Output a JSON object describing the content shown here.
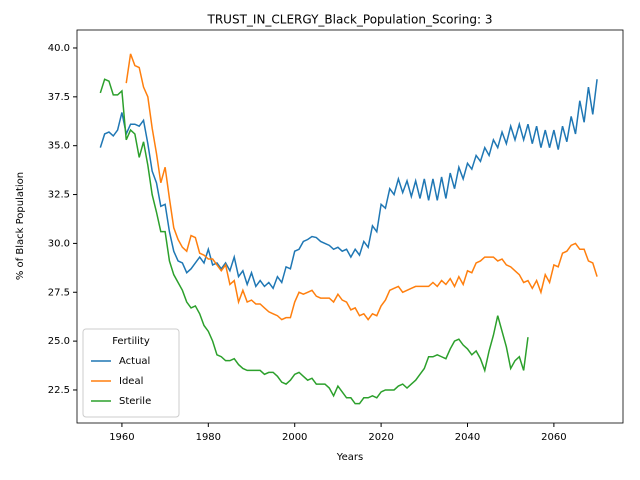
{
  "chart_data": {
    "type": "line",
    "title": "TRUST_IN_CLERGY_Black_Population_Scoring: 3",
    "xlabel": "Years",
    "ylabel": "% of Black Population",
    "legend_title": "Fertility",
    "legend_loc": "lower left",
    "grid": false,
    "x": [
      1955,
      1956,
      1957,
      1958,
      1959,
      1960,
      1961,
      1962,
      1963,
      1964,
      1965,
      1966,
      1967,
      1968,
      1969,
      1970,
      1971,
      1972,
      1973,
      1974,
      1975,
      1976,
      1977,
      1978,
      1979,
      1980,
      1981,
      1982,
      1983,
      1984,
      1985,
      1986,
      1987,
      1988,
      1989,
      1990,
      1991,
      1992,
      1993,
      1994,
      1995,
      1996,
      1997,
      1998,
      1999,
      2000,
      2001,
      2002,
      2003,
      2004,
      2005,
      2006,
      2007,
      2008,
      2009,
      2010,
      2011,
      2012,
      2013,
      2014,
      2015,
      2016,
      2017,
      2018,
      2019,
      2020,
      2021,
      2022,
      2023,
      2024,
      2025,
      2026,
      2027,
      2028,
      2029,
      2030,
      2031,
      2032,
      2033,
      2034,
      2035,
      2036,
      2037,
      2038,
      2039,
      2040,
      2041,
      2042,
      2043,
      2044,
      2045,
      2046,
      2047,
      2048,
      2049,
      2050,
      2051,
      2052,
      2053,
      2054,
      2055,
      2056,
      2057,
      2058,
      2059,
      2060,
      2061,
      2062,
      2063,
      2064,
      2065,
      2066,
      2067,
      2068,
      2069,
      2070
    ],
    "series": [
      {
        "name": "Actual",
        "color": "#1f77b4",
        "values": [
          34.9,
          35.6,
          35.7,
          35.5,
          35.8,
          36.7,
          35.6,
          36.1,
          36.1,
          36.0,
          36.3,
          35.1,
          33.7,
          33.1,
          31.9,
          32.0,
          30.6,
          29.6,
          29.1,
          29.0,
          28.5,
          28.7,
          29.0,
          29.3,
          29.0,
          29.7,
          28.9,
          29.0,
          28.7,
          29.0,
          28.6,
          29.3,
          28.3,
          28.6,
          27.9,
          28.5,
          27.8,
          28.1,
          27.8,
          28.0,
          27.7,
          28.3,
          28.0,
          28.8,
          28.7,
          29.6,
          29.7,
          30.1,
          30.2,
          30.35,
          30.3,
          30.1,
          30.0,
          29.9,
          29.7,
          29.8,
          29.6,
          29.7,
          29.3,
          29.7,
          29.4,
          30.1,
          29.8,
          30.9,
          30.6,
          32.0,
          31.8,
          32.8,
          32.5,
          33.3,
          32.6,
          33.2,
          32.4,
          33.2,
          32.3,
          33.3,
          32.2,
          33.3,
          32.2,
          33.4,
          32.3,
          33.6,
          32.8,
          33.9,
          33.3,
          34.1,
          33.8,
          34.5,
          34.2,
          34.9,
          34.5,
          35.3,
          34.9,
          35.7,
          35.1,
          36.0,
          35.3,
          36.1,
          35.3,
          36.1,
          35.1,
          36.0,
          34.9,
          35.8,
          34.9,
          35.8,
          34.8,
          36.0,
          35.2,
          36.5,
          35.6,
          37.3,
          36.2,
          38.0,
          36.6,
          38.4
        ]
      },
      {
        "name": "Ideal",
        "color": "#ff7f0e",
        "values": [
          null,
          null,
          null,
          null,
          null,
          null,
          38.2,
          39.7,
          39.1,
          39.0,
          38.0,
          37.5,
          35.9,
          34.6,
          33.1,
          33.9,
          32.3,
          30.8,
          30.2,
          29.8,
          29.6,
          30.4,
          30.3,
          29.5,
          29.4,
          29.2,
          29.2,
          28.9,
          28.6,
          28.9,
          27.9,
          28.1,
          27.0,
          27.6,
          27.0,
          27.1,
          26.9,
          26.9,
          26.7,
          26.5,
          26.4,
          26.3,
          26.1,
          26.2,
          26.2,
          27.0,
          27.5,
          27.4,
          27.5,
          27.6,
          27.3,
          27.2,
          27.2,
          27.2,
          27.0,
          27.4,
          27.1,
          27.0,
          26.6,
          26.7,
          26.3,
          26.4,
          26.1,
          26.4,
          26.3,
          26.8,
          27.1,
          27.6,
          27.7,
          27.8,
          27.5,
          27.6,
          27.7,
          27.8,
          27.8,
          27.8,
          27.8,
          28.0,
          27.8,
          28.1,
          27.9,
          28.2,
          27.8,
          28.3,
          27.9,
          28.6,
          28.5,
          29.0,
          29.1,
          29.3,
          29.3,
          29.3,
          29.1,
          29.2,
          28.9,
          28.8,
          28.6,
          28.4,
          28.0,
          28.1,
          27.7,
          28.1,
          27.5,
          28.4,
          28.0,
          28.9,
          28.8,
          29.5,
          29.6,
          29.9,
          30.0,
          29.7,
          29.7,
          29.1,
          29.0,
          28.3
        ]
      },
      {
        "name": "Sterile",
        "color": "#2ca02c",
        "values": [
          37.7,
          38.4,
          38.3,
          37.6,
          37.6,
          37.8,
          35.3,
          35.8,
          35.6,
          34.4,
          35.2,
          34.0,
          32.5,
          31.6,
          30.6,
          30.6,
          29.1,
          28.4,
          28.0,
          27.6,
          27.0,
          26.7,
          26.8,
          26.4,
          25.8,
          25.5,
          25.0,
          24.3,
          24.2,
          24.0,
          24.0,
          24.1,
          23.8,
          23.6,
          23.5,
          23.5,
          23.5,
          23.5,
          23.3,
          23.4,
          23.4,
          23.2,
          22.9,
          22.8,
          23.0,
          23.3,
          23.4,
          23.2,
          23.0,
          23.1,
          22.8,
          22.8,
          22.8,
          22.6,
          22.2,
          22.7,
          22.4,
          22.1,
          22.1,
          21.8,
          21.8,
          22.1,
          22.1,
          22.2,
          22.1,
          22.4,
          22.5,
          22.5,
          22.5,
          22.7,
          22.8,
          22.6,
          22.8,
          23.0,
          23.3,
          23.6,
          24.2,
          24.2,
          24.3,
          24.2,
          24.1,
          24.6,
          25.0,
          25.1,
          24.8,
          24.6,
          24.3,
          24.5,
          24.1,
          23.5,
          24.5,
          25.3,
          26.3,
          25.5,
          24.7,
          23.6,
          24.0,
          24.2,
          23.5,
          25.2,
          null,
          null,
          null,
          null,
          null,
          null,
          null,
          null,
          null,
          null,
          null,
          null,
          null,
          null,
          null,
          null
        ]
      }
    ],
    "xlim": [
      1949.6,
      2076
    ],
    "ylim": [
      20.81,
      40.92
    ],
    "xticks": [
      1960,
      1980,
      2000,
      2020,
      2040,
      2060
    ],
    "yticks": [
      22.5,
      {
        "value": 25,
        "label": "25.0"
      },
      27.5,
      {
        "value": 30,
        "label": "30.0"
      },
      32.5,
      {
        "value": 35,
        "label": "35.0"
      },
      37.5,
      {
        "value": 40,
        "label": "40.0"
      }
    ]
  }
}
